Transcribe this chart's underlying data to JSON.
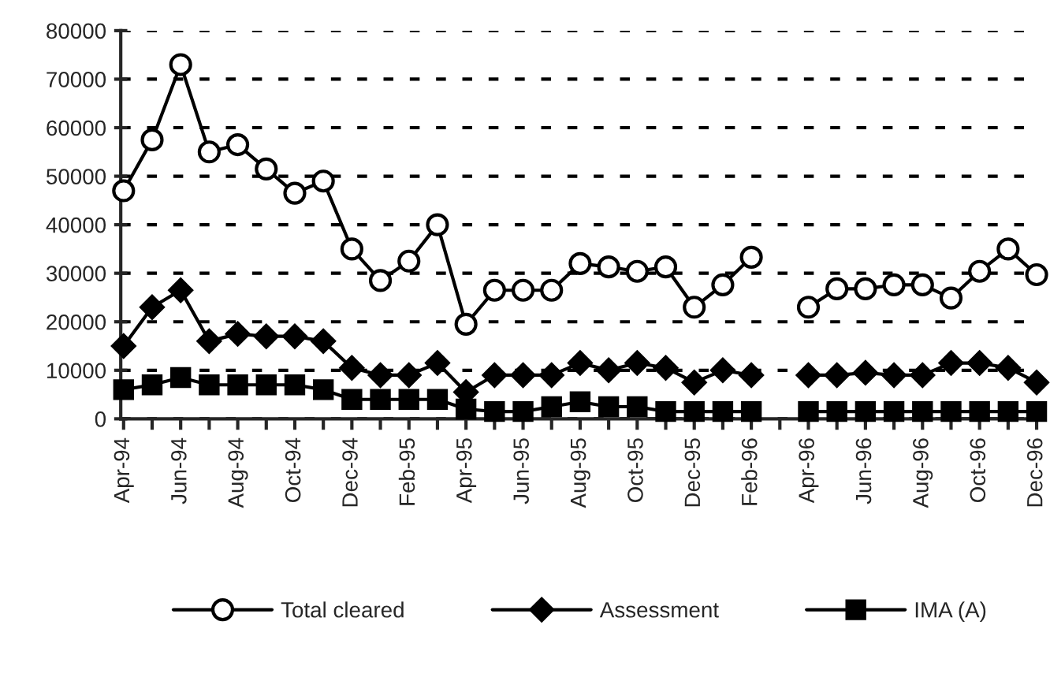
{
  "chart_data": {
    "type": "line",
    "categories": [
      "Apr-94",
      null,
      "Jun-94",
      null,
      "Aug-94",
      null,
      "Oct-94",
      null,
      "Dec-94",
      null,
      "Feb-95",
      null,
      "Apr-95",
      null,
      "Jun-95",
      null,
      "Aug-95",
      null,
      "Oct-95",
      null,
      "Dec-95",
      null,
      "Feb-96",
      null,
      "Apr-96",
      null,
      "Jun-96",
      null,
      "Aug-96",
      null,
      "Oct-96",
      null,
      "Dec-96"
    ],
    "series": [
      {
        "name": "Total cleared",
        "color": "#000000",
        "marker": "circle",
        "values": [
          47000,
          57500,
          73000,
          55000,
          56500,
          51500,
          46500,
          49000,
          35000,
          28500,
          32500,
          40000,
          19500,
          26500,
          26500,
          26500,
          32000,
          31300,
          30400,
          31300,
          23000,
          27600,
          33300,
          null,
          23000,
          26800,
          26800,
          27600,
          27600,
          24900,
          30400,
          35000,
          29700
        ]
      },
      {
        "name": "Assessment",
        "color": "#000000",
        "marker": "diamond",
        "values": [
          15000,
          23000,
          26500,
          16000,
          17500,
          17000,
          17000,
          16000,
          10500,
          9000,
          9000,
          11500,
          5500,
          9000,
          9000,
          9000,
          11500,
          10000,
          11500,
          10500,
          7500,
          10000,
          9000,
          null,
          9000,
          9000,
          9500,
          9000,
          9000,
          11500,
          11500,
          10500,
          7500
        ]
      },
      {
        "name": "IMA (A)",
        "color": "#000000",
        "marker": "square",
        "values": [
          6000,
          7000,
          8500,
          7000,
          7000,
          7000,
          7000,
          6000,
          4000,
          4000,
          4000,
          4000,
          2000,
          1500,
          1500,
          2500,
          3500,
          2500,
          2500,
          1500,
          1500,
          1500,
          1500,
          null,
          1500,
          1500,
          1500,
          1500,
          1500,
          1500,
          1500,
          1500,
          1500
        ]
      }
    ],
    "ylim": [
      0,
      80000
    ],
    "yticks": [
      0,
      10000,
      20000,
      30000,
      40000,
      50000,
      60000,
      70000,
      80000
    ],
    "grid": "y",
    "legend": "bottom",
    "line_style": "solid"
  }
}
